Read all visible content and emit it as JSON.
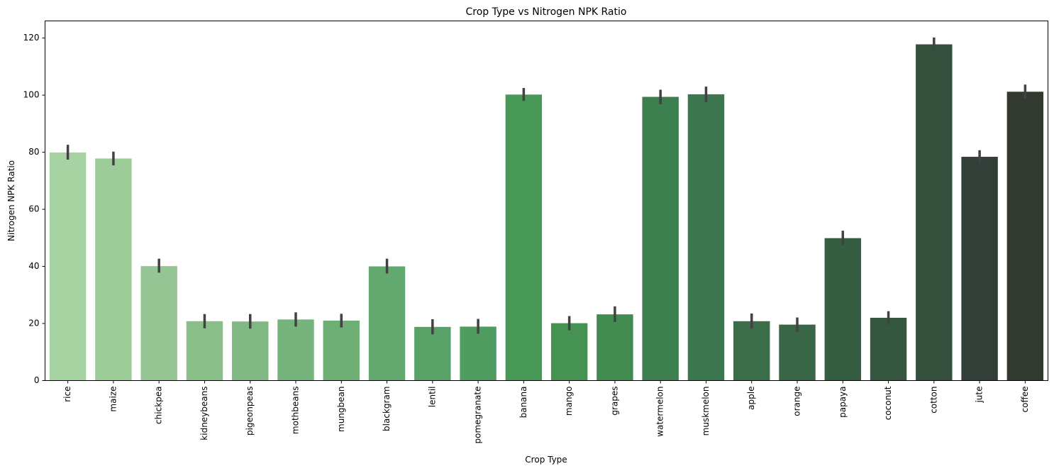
{
  "chart_data": {
    "type": "bar",
    "title": "Crop Type vs Nitrogen NPK Ratio",
    "xlabel": "Crop Type",
    "ylabel": "Nitrogen NPK Ratio",
    "ylim": [
      0,
      126
    ],
    "yticks": [
      0,
      20,
      40,
      60,
      80,
      100,
      120
    ],
    "grid": false,
    "categories": [
      "rice",
      "maize",
      "chickpea",
      "kidneybeans",
      "pigeonpeas",
      "mothbeans",
      "mungbean",
      "blackgram",
      "lentil",
      "pomegranate",
      "banana",
      "mango",
      "grapes",
      "watermelon",
      "muskmelon",
      "apple",
      "orange",
      "papaya",
      "coconut",
      "cotton",
      "jute",
      "coffee"
    ],
    "values": [
      79.9,
      77.8,
      40.1,
      20.8,
      20.7,
      21.4,
      21.0,
      40.0,
      18.8,
      18.9,
      100.2,
      20.1,
      23.2,
      99.4,
      100.3,
      20.8,
      19.6,
      49.9,
      22.0,
      117.8,
      78.4,
      101.2
    ],
    "error_low": [
      77.4,
      75.4,
      37.8,
      18.3,
      18.2,
      18.9,
      18.6,
      37.5,
      16.2,
      16.4,
      98.0,
      17.6,
      20.5,
      96.8,
      97.6,
      18.2,
      17.1,
      47.3,
      19.7,
      115.9,
      76.2,
      98.8
    ],
    "error_high": [
      82.6,
      80.2,
      42.7,
      23.3,
      23.3,
      23.9,
      23.4,
      42.7,
      21.5,
      21.6,
      102.5,
      22.6,
      26.0,
      101.9,
      103.0,
      23.5,
      22.1,
      52.5,
      24.3,
      120.2,
      80.7,
      103.7
    ],
    "colors": [
      "#a6d3a1",
      "#9ccc97",
      "#96c594",
      "#8bbf89",
      "#7fb883",
      "#77b37d",
      "#6daf75",
      "#63a86f",
      "#58a267",
      "#4f9d60",
      "#489958",
      "#459252",
      "#428b51",
      "#3d7e4f",
      "#3d774f",
      "#3b6d48",
      "#386647",
      "#355d42",
      "#35573f",
      "#344f3c",
      "#323f38",
      "#32392f"
    ],
    "errorbar_color": "#424242"
  }
}
